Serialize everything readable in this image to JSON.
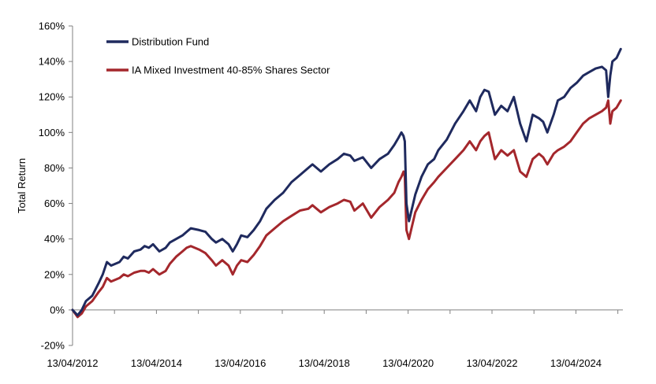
{
  "chart_data": {
    "type": "line",
    "ylabel": "Total Return",
    "xlabel": "",
    "ylim": [
      -20,
      160
    ],
    "yticks": [
      -20,
      0,
      20,
      40,
      60,
      80,
      100,
      120,
      140,
      160
    ],
    "ytick_labels": [
      "-20%",
      "0%",
      "20%",
      "40%",
      "60%",
      "80%",
      "100%",
      "120%",
      "140%",
      "160%"
    ],
    "xlim": [
      2012.28,
      2025.4
    ],
    "xtick_labels": [
      "13/04/2012",
      "13/04/2014",
      "13/04/2016",
      "13/04/2018",
      "13/04/2020",
      "13/04/2022",
      "13/04/2024"
    ],
    "xtick_values": [
      2012.28,
      2014.28,
      2016.28,
      2018.28,
      2020.28,
      2022.28,
      2024.28
    ],
    "legend_position": "top-left",
    "grid": false,
    "series": [
      {
        "name": "Distribution Fund",
        "color": "#1f2a5e",
        "x": [
          2012.28,
          2012.4,
          2012.5,
          2012.6,
          2012.75,
          2012.9,
          2013.0,
          2013.1,
          2013.2,
          2013.3,
          2013.4,
          2013.5,
          2013.6,
          2013.75,
          2013.9,
          2014.0,
          2014.1,
          2014.2,
          2014.35,
          2014.5,
          2014.6,
          2014.75,
          2014.9,
          2015.0,
          2015.1,
          2015.3,
          2015.45,
          2015.6,
          2015.7,
          2015.85,
          2016.0,
          2016.1,
          2016.2,
          2016.3,
          2016.45,
          2016.6,
          2016.75,
          2016.9,
          2017.1,
          2017.3,
          2017.5,
          2017.7,
          2017.9,
          2018.0,
          2018.1,
          2018.2,
          2018.4,
          2018.6,
          2018.75,
          2018.9,
          2019.0,
          2019.2,
          2019.4,
          2019.6,
          2019.8,
          2019.95,
          2020.05,
          2020.12,
          2020.17,
          2020.2,
          2020.24,
          2020.3,
          2020.45,
          2020.6,
          2020.75,
          2020.9,
          2021.0,
          2021.2,
          2021.4,
          2021.6,
          2021.75,
          2021.9,
          2022.0,
          2022.1,
          2022.2,
          2022.35,
          2022.5,
          2022.65,
          2022.8,
          2022.95,
          2023.1,
          2023.25,
          2023.4,
          2023.5,
          2023.6,
          2023.75,
          2023.85,
          2024.0,
          2024.15,
          2024.3,
          2024.45,
          2024.6,
          2024.75,
          2024.9,
          2025.0,
          2025.05,
          2025.1,
          2025.15,
          2025.25,
          2025.35
        ],
        "values": [
          0,
          -3,
          0,
          5,
          8,
          15,
          20,
          27,
          25,
          26,
          27,
          30,
          29,
          33,
          34,
          36,
          35,
          37,
          33,
          35,
          38,
          40,
          42,
          44,
          46,
          45,
          44,
          40,
          38,
          40,
          37,
          33,
          37,
          42,
          41,
          45,
          50,
          57,
          62,
          66,
          72,
          76,
          80,
          82,
          80,
          78,
          82,
          85,
          88,
          87,
          84,
          86,
          80,
          85,
          88,
          93,
          97,
          100,
          98,
          95,
          60,
          50,
          65,
          75,
          82,
          85,
          90,
          96,
          105,
          112,
          118,
          112,
          120,
          124,
          123,
          110,
          115,
          112,
          120,
          105,
          95,
          110,
          108,
          106,
          100,
          110,
          118,
          120,
          125,
          128,
          132,
          134,
          136,
          137,
          135,
          120,
          132,
          140,
          142,
          147
        ]
      },
      {
        "name": "IA Mixed Investment 40-85% Shares Sector",
        "color": "#a4272c",
        "x": [
          2012.28,
          2012.4,
          2012.5,
          2012.6,
          2012.75,
          2012.9,
          2013.0,
          2013.1,
          2013.2,
          2013.3,
          2013.4,
          2013.5,
          2013.6,
          2013.75,
          2013.9,
          2014.0,
          2014.1,
          2014.2,
          2014.35,
          2014.5,
          2014.6,
          2014.75,
          2014.9,
          2015.0,
          2015.1,
          2015.3,
          2015.45,
          2015.6,
          2015.7,
          2015.85,
          2016.0,
          2016.1,
          2016.2,
          2016.3,
          2016.45,
          2016.6,
          2016.75,
          2016.9,
          2017.1,
          2017.3,
          2017.5,
          2017.7,
          2017.9,
          2018.0,
          2018.1,
          2018.2,
          2018.4,
          2018.6,
          2018.75,
          2018.9,
          2019.0,
          2019.2,
          2019.4,
          2019.6,
          2019.8,
          2019.95,
          2020.05,
          2020.12,
          2020.17,
          2020.2,
          2020.24,
          2020.3,
          2020.45,
          2020.6,
          2020.75,
          2020.9,
          2021.0,
          2021.2,
          2021.4,
          2021.6,
          2021.75,
          2021.9,
          2022.0,
          2022.1,
          2022.2,
          2022.35,
          2022.5,
          2022.65,
          2022.8,
          2022.95,
          2023.1,
          2023.25,
          2023.4,
          2023.5,
          2023.6,
          2023.75,
          2023.85,
          2024.0,
          2024.15,
          2024.3,
          2024.45,
          2024.6,
          2024.75,
          2024.9,
          2025.0,
          2025.05,
          2025.1,
          2025.15,
          2025.25,
          2025.35
        ],
        "values": [
          0,
          -4,
          -2,
          2,
          5,
          10,
          13,
          18,
          16,
          17,
          18,
          20,
          19,
          21,
          22,
          22,
          21,
          23,
          20,
          22,
          26,
          30,
          33,
          35,
          36,
          34,
          32,
          28,
          25,
          28,
          25,
          20,
          25,
          28,
          27,
          31,
          36,
          42,
          46,
          50,
          53,
          56,
          57,
          59,
          57,
          55,
          58,
          60,
          62,
          61,
          56,
          60,
          52,
          58,
          62,
          66,
          72,
          75,
          78,
          75,
          45,
          40,
          55,
          62,
          68,
          72,
          75,
          80,
          85,
          90,
          95,
          90,
          95,
          98,
          100,
          85,
          90,
          87,
          90,
          78,
          75,
          85,
          88,
          86,
          82,
          88,
          90,
          92,
          95,
          100,
          105,
          108,
          110,
          112,
          114,
          118,
          105,
          112,
          114,
          118
        ]
      }
    ]
  }
}
